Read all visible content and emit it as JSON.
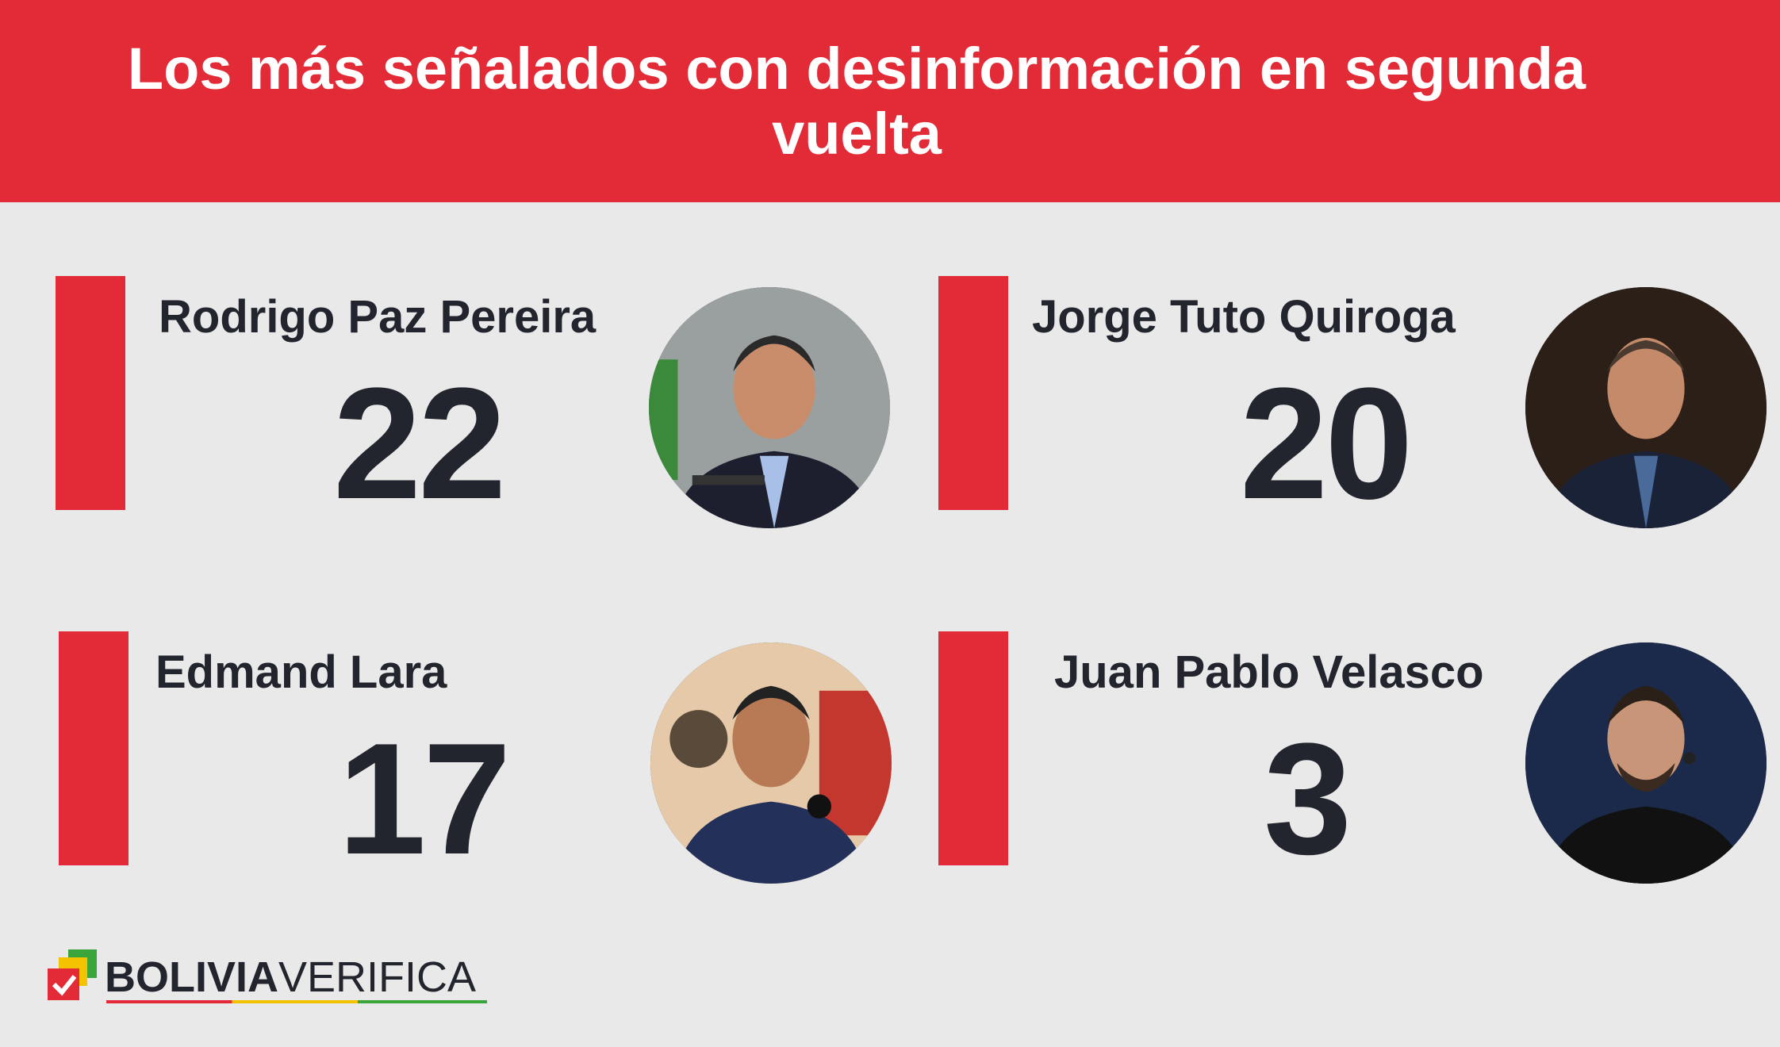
{
  "header": {
    "title": "Los más señalados con desinformación en segunda vuelta"
  },
  "candidates": [
    {
      "name": "Rodrigo Paz Pereira",
      "count": "22"
    },
    {
      "name": "Jorge Tuto Quiroga",
      "count": "20"
    },
    {
      "name": "Edmand Lara",
      "count": "17"
    },
    {
      "name": "Juan Pablo Velasco",
      "count": "3"
    }
  ],
  "logo": {
    "bold": "BOLIVIA",
    "light": "VERIFICA"
  },
  "colors": {
    "accent": "#e32a37",
    "text": "#23252e",
    "background": "#e9e9e9"
  }
}
